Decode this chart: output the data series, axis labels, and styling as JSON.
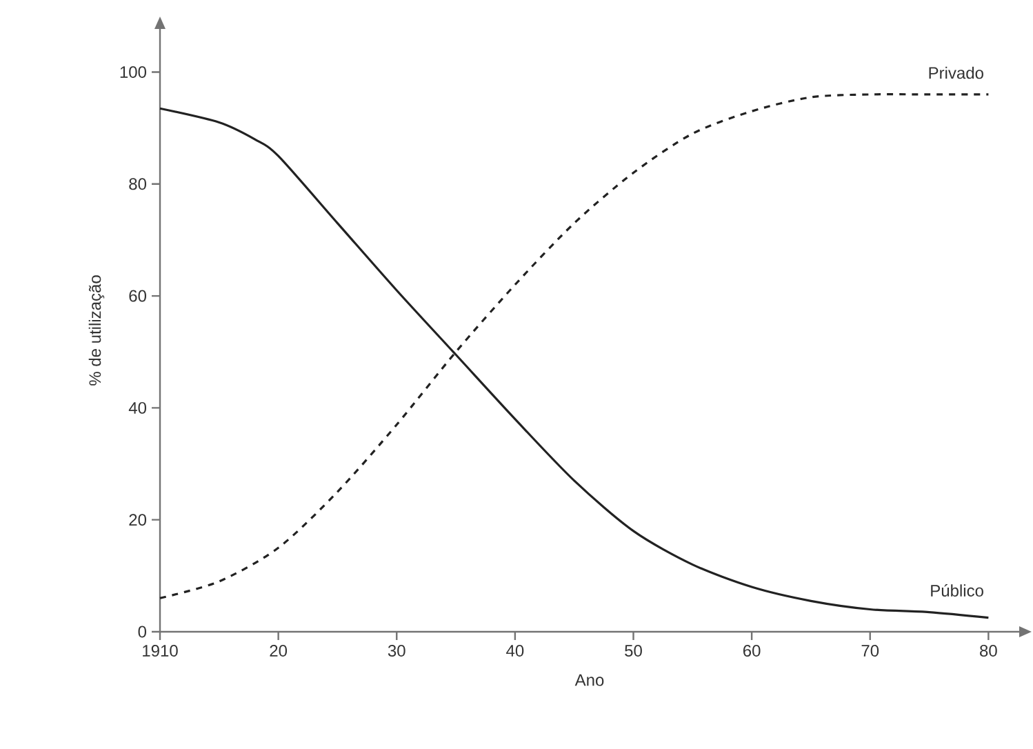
{
  "chart_data": {
    "type": "line",
    "xlabel": "Ano",
    "ylabel": "% de utilização",
    "xlim": [
      1910,
      1982.6
    ],
    "ylim": [
      0,
      107.7
    ],
    "xticks": [
      1910,
      {
        "value": 1920,
        "label": "20"
      },
      {
        "value": 1930,
        "label": "30"
      },
      {
        "value": 1940,
        "label": "40"
      },
      {
        "value": 1950,
        "label": "50"
      },
      {
        "value": 1960,
        "label": "60"
      },
      {
        "value": 1970,
        "label": "70"
      },
      {
        "value": 1980,
        "label": "80"
      }
    ],
    "yticks": [
      0,
      20,
      40,
      60,
      80,
      100
    ],
    "grid": false,
    "marker": "none",
    "series": [
      {
        "name": "Privado",
        "color": "#222222",
        "line_style": "dashed",
        "x": [
          1910,
          1915,
          1920,
          1925,
          1930,
          1935,
          1940,
          1945,
          1950,
          1955,
          1960,
          1965,
          1970,
          1975,
          1980
        ],
        "values": [
          6,
          9,
          15,
          25,
          37,
          50,
          62,
          73,
          82,
          89,
          93,
          95.5,
          96,
          96,
          96
        ]
      },
      {
        "name": "Público",
        "color": "#222222",
        "line_style": "solid",
        "x": [
          1910,
          1915,
          1918,
          1920,
          1925,
          1930,
          1935,
          1940,
          1945,
          1950,
          1955,
          1960,
          1965,
          1970,
          1975,
          1980
        ],
        "values": [
          93.5,
          91,
          88,
          85,
          73,
          61,
          49.5,
          38,
          27,
          18,
          12,
          8,
          5.5,
          4,
          3.5,
          2.5
        ]
      }
    ]
  }
}
